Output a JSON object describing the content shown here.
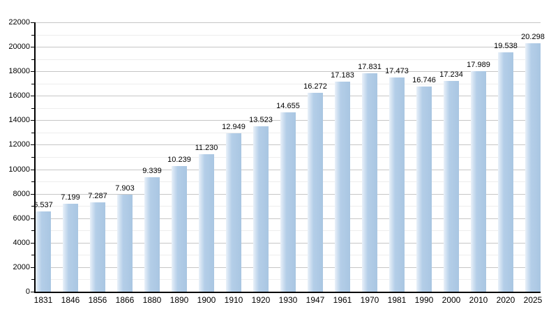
{
  "chart_data": {
    "type": "bar",
    "title": "",
    "xlabel": "",
    "ylabel": "",
    "categories": [
      "1831",
      "1846",
      "1856",
      "1866",
      "1880",
      "1890",
      "1900",
      "1910",
      "1920",
      "1930",
      "1947",
      "1961",
      "1970",
      "1981",
      "1990",
      "2000",
      "2010",
      "2020",
      "2025"
    ],
    "values": [
      6537,
      7199,
      7287,
      7903,
      9339,
      10239,
      11230,
      12949,
      13523,
      14655,
      16272,
      17183,
      17831,
      17473,
      16746,
      17234,
      17989,
      19538,
      20298
    ],
    "value_labels": [
      "6.537",
      "7.199",
      "7.287",
      "7.903",
      "9.339",
      "10.239",
      "11.230",
      "12.949",
      "13.523",
      "14.655",
      "16.272",
      "17.183",
      "17.831",
      "17.473",
      "16.746",
      "17.234",
      "17.989",
      "19.538",
      "20.298"
    ],
    "ylim": [
      0,
      22000
    ],
    "y_major_step": 2000,
    "y_minor_step": 1000,
    "y_tick_labels": [
      "0",
      "2000",
      "4000",
      "6000",
      "8000",
      "10000",
      "12000",
      "14000",
      "16000",
      "18000",
      "20000",
      "22000"
    ],
    "grid": true,
    "legend": false,
    "colors": {
      "bar": "#b4cee8",
      "bar_highlight": "#e9f1f9",
      "bar_edge": "#a9c6e2",
      "gridline_major": "#c6c6c6",
      "gridline_minor": "#ededed",
      "axis": "#000000",
      "text": "#000000",
      "background": "#ffffff"
    }
  }
}
